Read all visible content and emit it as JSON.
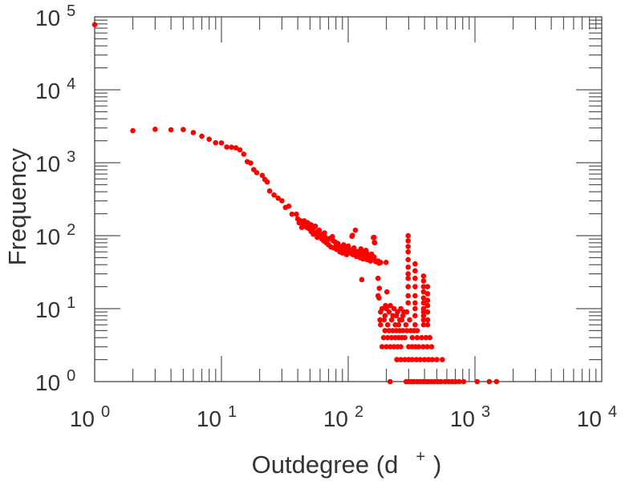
{
  "chart_data": {
    "type": "scatter",
    "title": "",
    "xlabel": "Outdegree (d",
    "xlabel_sup": "+",
    "xlabel_end": ")",
    "ylabel": "Frequency",
    "xscale": "log",
    "yscale": "log",
    "xlim": [
      1,
      10000
    ],
    "ylim": [
      1,
      100000
    ],
    "tick_base": "10",
    "x_tick_exponents": [
      "0",
      "1",
      "2",
      "3",
      "4"
    ],
    "y_tick_exponents": [
      "0",
      "1",
      "2",
      "3",
      "4",
      "5"
    ],
    "grid": false,
    "marker_color": "#ff0000",
    "series": [
      {
        "name": "outdegree",
        "points": [
          [
            1,
            78000
          ],
          [
            2,
            2750
          ],
          [
            3,
            2870
          ],
          [
            4,
            2830
          ],
          [
            5,
            2850
          ],
          [
            6,
            2590
          ],
          [
            7,
            2310
          ],
          [
            8,
            2100
          ],
          [
            9,
            1880
          ],
          [
            10,
            1870
          ],
          [
            11,
            1640
          ],
          [
            12,
            1630
          ],
          [
            13,
            1600
          ],
          [
            14,
            1500
          ],
          [
            15,
            1310
          ],
          [
            16,
            1035
          ],
          [
            17,
            990
          ],
          [
            18,
            805
          ],
          [
            19,
            730
          ],
          [
            21,
            670
          ],
          [
            22,
            590
          ],
          [
            23,
            545
          ],
          [
            24,
            410
          ],
          [
            26,
            361
          ],
          [
            28,
            327
          ],
          [
            30,
            301
          ],
          [
            32,
            244
          ],
          [
            34,
            254
          ],
          [
            36,
            197
          ],
          [
            39,
            197
          ],
          [
            42,
            160
          ],
          [
            43,
            130
          ],
          [
            46,
            153
          ],
          [
            51,
            141
          ],
          [
            55,
            135
          ],
          [
            51,
            114
          ],
          [
            59,
            119
          ],
          [
            65,
            109
          ],
          [
            68,
            89
          ],
          [
            75,
            97
          ],
          [
            79,
            82
          ],
          [
            108,
            101
          ],
          [
            114,
            119
          ],
          [
            160,
            95
          ],
          [
            162,
            80
          ],
          [
            138,
            63
          ],
          [
            100,
            72
          ],
          [
            91,
            63
          ],
          [
            122,
            61
          ],
          [
            107,
            98
          ],
          [
            158,
            94
          ],
          [
            161,
            81
          ],
          [
            83,
            78
          ],
          [
            40,
            170
          ],
          [
            41,
            150
          ],
          [
            44,
            140
          ],
          [
            45,
            160
          ],
          [
            47,
            130
          ],
          [
            48,
            150
          ],
          [
            49,
            125
          ],
          [
            50,
            135
          ],
          [
            52,
            120
          ],
          [
            53,
            105
          ],
          [
            54,
            130
          ],
          [
            56,
            110
          ],
          [
            57,
            95
          ],
          [
            58,
            115
          ],
          [
            60,
            100
          ],
          [
            62,
            90
          ],
          [
            63,
            105
          ],
          [
            64,
            85
          ],
          [
            66,
            95
          ],
          [
            67,
            80
          ],
          [
            69,
            88
          ],
          [
            70,
            75
          ],
          [
            72,
            92
          ],
          [
            73,
            70
          ],
          [
            76,
            85
          ],
          [
            77,
            68
          ],
          [
            80,
            78
          ],
          [
            81,
            65
          ],
          [
            84,
            72
          ],
          [
            86,
            60
          ],
          [
            88,
            70
          ],
          [
            89,
            64
          ],
          [
            90,
            58
          ],
          [
            92,
            75
          ],
          [
            94,
            62
          ],
          [
            95,
            68
          ],
          [
            97,
            55
          ],
          [
            99,
            65
          ],
          [
            102,
            60
          ],
          [
            104,
            58
          ],
          [
            106,
            64
          ],
          [
            109,
            55
          ],
          [
            111,
            68
          ],
          [
            113,
            62
          ],
          [
            116,
            52
          ],
          [
            118,
            60
          ],
          [
            121,
            57
          ],
          [
            124,
            50
          ],
          [
            126,
            66
          ],
          [
            129,
            55
          ],
          [
            131,
            48
          ],
          [
            134,
            60
          ],
          [
            137,
            53
          ],
          [
            140,
            58
          ],
          [
            143,
            47
          ],
          [
            146,
            52
          ],
          [
            150,
            45
          ],
          [
            153,
            56
          ],
          [
            157,
            48
          ],
          [
            160,
            51
          ],
          [
            165,
            44
          ],
          [
            170,
            45
          ],
          [
            175,
            42
          ],
          [
            180,
            43
          ],
          [
            135,
            61
          ],
          [
            141,
            47
          ],
          [
            172,
            45
          ],
          [
            199,
            43
          ],
          [
            128,
            25
          ],
          [
            172,
            26
          ],
          [
            176,
            19
          ],
          [
            202,
            17
          ],
          [
            172,
            15
          ],
          [
            175,
            14
          ],
          [
            197,
            11
          ],
          [
            185,
            10
          ],
          [
            200,
            10
          ],
          [
            215,
            11
          ],
          [
            230,
            10
          ],
          [
            245,
            9
          ],
          [
            260,
            10
          ],
          [
            275,
            9
          ],
          [
            180,
            9
          ],
          [
            195,
            8
          ],
          [
            210,
            9
          ],
          [
            225,
            8
          ],
          [
            240,
            8
          ],
          [
            255,
            7
          ],
          [
            270,
            8
          ],
          [
            290,
            9
          ],
          [
            178,
            7
          ],
          [
            192,
            7
          ],
          [
            205,
            6
          ],
          [
            220,
            7
          ],
          [
            235,
            6
          ],
          [
            250,
            6
          ],
          [
            265,
            7
          ],
          [
            285,
            6
          ],
          [
            305,
            7
          ],
          [
            180,
            6
          ],
          [
            195,
            5
          ],
          [
            210,
            5
          ],
          [
            225,
            5
          ],
          [
            240,
            5
          ],
          [
            255,
            5
          ],
          [
            270,
            5
          ],
          [
            290,
            5
          ],
          [
            310,
            5
          ],
          [
            330,
            5
          ],
          [
            350,
            5
          ],
          [
            190,
            4
          ],
          [
            205,
            4
          ],
          [
            220,
            4
          ],
          [
            235,
            4
          ],
          [
            250,
            4
          ],
          [
            265,
            4
          ],
          [
            280,
            4
          ],
          [
            320,
            4
          ],
          [
            350,
            4
          ],
          [
            380,
            4
          ],
          [
            410,
            4
          ],
          [
            440,
            4
          ],
          [
            185,
            3
          ],
          [
            200,
            3
          ],
          [
            215,
            3
          ],
          [
            230,
            3
          ],
          [
            245,
            3
          ],
          [
            260,
            3
          ],
          [
            300,
            3
          ],
          [
            320,
            3
          ],
          [
            340,
            3
          ],
          [
            360,
            3
          ],
          [
            390,
            3
          ],
          [
            420,
            3
          ],
          [
            455,
            3
          ],
          [
            297,
            100
          ],
          [
            297,
            85
          ],
          [
            297,
            71
          ],
          [
            297,
            60
          ],
          [
            297,
            47
          ],
          [
            297,
            37
          ],
          [
            297,
            30
          ],
          [
            297,
            26
          ],
          [
            297,
            20
          ],
          [
            297,
            15
          ],
          [
            297,
            12
          ],
          [
            337,
            41
          ],
          [
            337,
            33
          ],
          [
            337,
            26
          ],
          [
            337,
            20
          ],
          [
            337,
            15
          ],
          [
            337,
            12
          ],
          [
            337,
            10
          ],
          [
            337,
            8
          ],
          [
            337,
            6
          ],
          [
            393,
            28
          ],
          [
            393,
            24
          ],
          [
            393,
            20
          ],
          [
            393,
            17
          ],
          [
            393,
            14
          ],
          [
            393,
            12
          ],
          [
            393,
            10
          ],
          [
            393,
            9
          ],
          [
            393,
            8
          ],
          [
            393,
            7
          ],
          [
            393,
            6
          ],
          [
            423,
            20
          ],
          [
            423,
            16
          ],
          [
            423,
            13
          ],
          [
            423,
            11
          ],
          [
            423,
            9
          ],
          [
            423,
            7
          ],
          [
            423,
            6
          ],
          [
            242,
            2
          ],
          [
            260,
            2
          ],
          [
            280,
            2
          ],
          [
            300,
            2
          ],
          [
            320,
            2
          ],
          [
            345,
            2
          ],
          [
            370,
            2
          ],
          [
            400,
            2
          ],
          [
            430,
            2
          ],
          [
            460,
            2
          ],
          [
            500,
            2
          ],
          [
            553,
            2
          ],
          [
            214,
            1
          ],
          [
            286,
            1
          ],
          [
            300,
            1
          ],
          [
            315,
            1
          ],
          [
            330,
            1
          ],
          [
            350,
            1
          ],
          [
            370,
            1
          ],
          [
            390,
            1
          ],
          [
            410,
            1
          ],
          [
            430,
            1
          ],
          [
            455,
            1
          ],
          [
            480,
            1
          ],
          [
            510,
            1
          ],
          [
            540,
            1
          ],
          [
            580,
            1
          ],
          [
            620,
            1
          ],
          [
            660,
            1
          ],
          [
            700,
            1
          ],
          [
            750,
            1
          ],
          [
            814,
            1
          ],
          [
            1042,
            1
          ],
          [
            1297,
            1
          ],
          [
            1480,
            1
          ]
        ]
      }
    ]
  }
}
